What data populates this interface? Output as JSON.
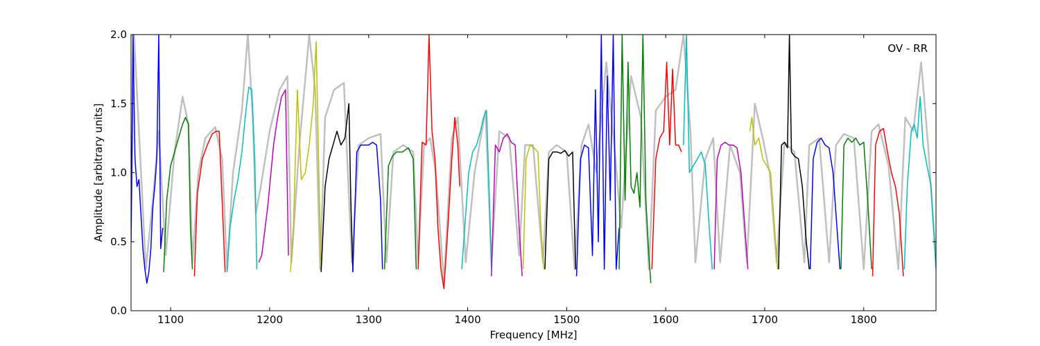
{
  "chart_data": {
    "type": "line",
    "title": "",
    "annotation": "OV - RR",
    "xlabel": "Frequency [MHz]",
    "ylabel": "Amplitude [arbitrary units]",
    "xlim": [
      1060,
      1873
    ],
    "ylim": [
      0.0,
      2.0
    ],
    "xticks": [
      1100,
      1200,
      1300,
      1400,
      1500,
      1600,
      1700,
      1800
    ],
    "yticks": [
      0.0,
      0.5,
      1.0,
      1.5,
      2.0
    ],
    "xtick_labels": [
      "1100",
      "1200",
      "1300",
      "1400",
      "1500",
      "1600",
      "1700",
      "1800"
    ],
    "ytick_labels": [
      "0.0",
      "0.5",
      "1.0",
      "1.5",
      "2.0"
    ],
    "grid": false,
    "background_trace": {
      "color": "#c0c0c0",
      "x": [
        1060,
        1063,
        1068,
        1075,
        1082,
        1088,
        1095,
        1104,
        1112,
        1118,
        1122,
        1128,
        1135,
        1145,
        1152,
        1157,
        1163,
        1172,
        1178,
        1183,
        1186,
        1191,
        1200,
        1210,
        1218,
        1222,
        1230,
        1240,
        1246,
        1251,
        1256,
        1265,
        1275,
        1283,
        1290,
        1300,
        1312,
        1318,
        1325,
        1335,
        1345,
        1350,
        1356,
        1362,
        1368,
        1376,
        1384,
        1390,
        1398,
        1407,
        1418,
        1424,
        1432,
        1442,
        1452,
        1458,
        1466,
        1476,
        1482,
        1490,
        1500,
        1508,
        1515,
        1522,
        1530,
        1540,
        1548,
        1555,
        1565,
        1575,
        1583,
        1590,
        1600,
        1610,
        1618,
        1625,
        1630,
        1640,
        1648,
        1655,
        1665,
        1675,
        1682,
        1690,
        1698,
        1705,
        1712,
        1720,
        1730,
        1740,
        1745,
        1755,
        1765,
        1772,
        1780,
        1790,
        1800,
        1808,
        1815,
        1825,
        1835,
        1842,
        1850,
        1858,
        1865,
        1873
      ],
      "y": [
        0.6,
        2.0,
        1.3,
        0.3,
        0.8,
        1.3,
        0.4,
        1.15,
        1.55,
        1.35,
        0.35,
        1.0,
        1.25,
        1.33,
        1.1,
        0.3,
        1.0,
        1.45,
        2.0,
        1.4,
        0.7,
        0.9,
        1.3,
        1.6,
        1.7,
        0.35,
        1.2,
        2.0,
        1.6,
        0.3,
        1.4,
        1.6,
        1.65,
        0.35,
        1.2,
        1.25,
        1.28,
        0.35,
        1.15,
        1.2,
        1.15,
        0.35,
        1.2,
        1.25,
        1.0,
        0.2,
        1.25,
        1.4,
        0.35,
        1.0,
        1.45,
        0.35,
        1.3,
        1.25,
        0.4,
        1.2,
        1.2,
        0.35,
        1.15,
        1.2,
        1.15,
        0.3,
        1.2,
        1.35,
        1.0,
        1.8,
        1.2,
        0.6,
        1.7,
        1.4,
        0.3,
        1.45,
        1.55,
        1.6,
        2.0,
        1.3,
        0.35,
        1.1,
        1.25,
        0.35,
        1.2,
        1.0,
        0.35,
        1.5,
        1.25,
        1.0,
        0.35,
        1.22,
        1.15,
        0.35,
        1.2,
        1.25,
        0.35,
        1.2,
        1.28,
        1.25,
        0.3,
        1.3,
        1.35,
        1.05,
        0.3,
        1.4,
        1.3,
        1.8,
        1.2,
        0.35
      ]
    },
    "series": [
      {
        "color": "#0000ff",
        "x": [
          1060,
          1062,
          1064,
          1066,
          1068,
          1070,
          1072,
          1074,
          1076,
          1078,
          1080,
          1082,
          1084,
          1086,
          1088,
          1090,
          1092
        ],
        "y": [
          0.5,
          2.0,
          1.1,
          0.9,
          0.95,
          0.7,
          0.45,
          0.3,
          0.2,
          0.28,
          0.45,
          0.75,
          0.9,
          1.1,
          2.0,
          0.45,
          0.6
        ]
      },
      {
        "color": "#008000",
        "x": [
          1093,
          1096,
          1100,
          1104,
          1108,
          1112,
          1115,
          1118,
          1120,
          1122
        ],
        "y": [
          0.28,
          0.8,
          1.05,
          1.15,
          1.25,
          1.35,
          1.4,
          1.35,
          0.6,
          0.3
        ]
      },
      {
        "color": "#ff0000",
        "x": [
          1124,
          1127,
          1132,
          1137,
          1142,
          1146,
          1149,
          1152,
          1155
        ],
        "y": [
          0.25,
          0.85,
          1.1,
          1.2,
          1.28,
          1.3,
          1.3,
          0.8,
          0.28
        ]
      },
      {
        "color": "#00bfbf",
        "x": [
          1157,
          1160,
          1164,
          1168,
          1172,
          1176,
          1179,
          1182,
          1185,
          1187
        ],
        "y": [
          0.28,
          0.6,
          0.8,
          0.95,
          1.15,
          1.45,
          1.62,
          1.6,
          1.1,
          0.3
        ]
      },
      {
        "color": "#bf00bf",
        "x": [
          1189,
          1192,
          1198,
          1204,
          1208,
          1212,
          1216,
          1219
        ],
        "y": [
          0.35,
          0.4,
          0.75,
          1.2,
          1.4,
          1.55,
          1.6,
          0.4
        ]
      },
      {
        "color": "#bfbf00",
        "x": [
          1221,
          1224,
          1228,
          1232,
          1236,
          1240,
          1244,
          1247,
          1250,
          1252
        ],
        "y": [
          0.28,
          0.6,
          1.6,
          0.95,
          1.0,
          1.2,
          1.5,
          1.95,
          0.9,
          0.28
        ]
      },
      {
        "color": "#000000",
        "x": [
          1252,
          1256,
          1260,
          1264,
          1268,
          1272,
          1276,
          1280,
          1282,
          1284
        ],
        "y": [
          0.28,
          0.9,
          1.1,
          1.2,
          1.3,
          1.2,
          1.25,
          1.5,
          0.8,
          0.28
        ]
      },
      {
        "color": "#0000ff",
        "x": [
          1284,
          1288,
          1292,
          1296,
          1300,
          1304,
          1308,
          1312,
          1314
        ],
        "y": [
          0.28,
          1.15,
          1.2,
          1.2,
          1.2,
          1.22,
          1.2,
          0.8,
          0.3
        ]
      },
      {
        "color": "#008000",
        "x": [
          1316,
          1320,
          1324,
          1328,
          1334,
          1340,
          1345,
          1348
        ],
        "y": [
          0.3,
          1.05,
          1.12,
          1.15,
          1.15,
          1.18,
          1.1,
          0.3
        ]
      },
      {
        "color": "#ff0000",
        "x": [
          1350,
          1354,
          1358,
          1361,
          1364,
          1367,
          1370,
          1373,
          1376,
          1380,
          1384,
          1387,
          1390,
          1392
        ],
        "y": [
          0.3,
          1.22,
          1.2,
          2.0,
          1.3,
          1.1,
          0.6,
          0.3,
          0.16,
          0.6,
          1.1,
          1.4,
          1.2,
          0.9
        ]
      },
      {
        "color": "#00bfbf",
        "x": [
          1394,
          1397,
          1401,
          1405,
          1409,
          1413,
          1416,
          1419,
          1422,
          1424
        ],
        "y": [
          0.3,
          0.6,
          1.0,
          1.15,
          1.2,
          1.3,
          1.4,
          1.45,
          0.8,
          0.3
        ]
      },
      {
        "color": "#bf00bf",
        "x": [
          1424,
          1428,
          1432,
          1436,
          1440,
          1444,
          1448,
          1452,
          1455
        ],
        "y": [
          0.25,
          1.2,
          1.15,
          1.25,
          1.28,
          1.22,
          1.2,
          0.6,
          0.25
        ]
      },
      {
        "color": "#bfbf00",
        "x": [
          1456,
          1459,
          1463,
          1467,
          1471,
          1474,
          1477
        ],
        "y": [
          0.3,
          1.1,
          1.2,
          1.18,
          1.15,
          0.6,
          0.3
        ]
      },
      {
        "color": "#000000",
        "x": [
          1478,
          1482,
          1486,
          1490,
          1494,
          1498,
          1502,
          1506,
          1509
        ],
        "y": [
          0.3,
          1.1,
          1.15,
          1.15,
          1.14,
          1.16,
          1.12,
          1.15,
          0.3
        ]
      },
      {
        "color": "#0000ff",
        "x": [
          1510,
          1514,
          1518,
          1522,
          1526,
          1529,
          1532,
          1535,
          1538,
          1541,
          1544,
          1547,
          1550,
          1553
        ],
        "y": [
          0.25,
          1.1,
          1.2,
          1.18,
          0.4,
          1.6,
          0.5,
          2.0,
          0.3,
          1.7,
          0.8,
          2.0,
          0.3,
          0.6
        ]
      },
      {
        "color": "#008000",
        "x": [
          1553,
          1556,
          1559,
          1562,
          1565,
          1568,
          1571,
          1574,
          1577,
          1580,
          1583,
          1585
        ],
        "y": [
          0.3,
          2.0,
          0.8,
          1.8,
          0.9,
          0.85,
          1.0,
          0.75,
          2.0,
          0.8,
          0.4,
          0.2
        ]
      },
      {
        "color": "#ff0000",
        "x": [
          1586,
          1590,
          1594,
          1598,
          1601,
          1604,
          1607,
          1610,
          1613,
          1616
        ],
        "y": [
          0.3,
          1.1,
          1.25,
          1.3,
          1.8,
          1.2,
          1.75,
          1.2,
          1.2,
          1.15
        ]
      },
      {
        "color": "#00bfbf",
        "x": [
          1618,
          1621,
          1624,
          1628,
          1632,
          1636,
          1640,
          1644,
          1647
        ],
        "y": [
          1.2,
          2.0,
          1.0,
          1.05,
          1.1,
          1.15,
          1.05,
          0.6,
          0.3
        ]
      },
      {
        "color": "#bf00bf",
        "x": [
          1649,
          1652,
          1656,
          1660,
          1664,
          1668,
          1672,
          1676,
          1680,
          1683
        ],
        "y": [
          0.3,
          1.1,
          1.2,
          1.22,
          1.2,
          1.2,
          1.18,
          1.0,
          0.6,
          0.3
        ]
      },
      {
        "color": "#bfbf00",
        "x": [
          1685,
          1687,
          1690,
          1694,
          1698,
          1702,
          1706,
          1710,
          1713
        ],
        "y": [
          1.3,
          1.4,
          1.2,
          1.25,
          1.1,
          1.05,
          1.0,
          0.6,
          0.3
        ]
      },
      {
        "color": "#000000",
        "x": [
          1714,
          1717,
          1720,
          1723,
          1725,
          1727,
          1730,
          1734,
          1738,
          1742,
          1745
        ],
        "y": [
          0.3,
          1.2,
          1.22,
          1.18,
          2.0,
          1.15,
          1.12,
          1.1,
          0.9,
          0.5,
          0.3
        ]
      },
      {
        "color": "#0000ff",
        "x": [
          1746,
          1749,
          1753,
          1757,
          1761,
          1765,
          1769,
          1773,
          1776
        ],
        "y": [
          0.3,
          1.1,
          1.22,
          1.25,
          1.2,
          1.18,
          1.0,
          0.6,
          0.3
        ]
      },
      {
        "color": "#008000",
        "x": [
          1777,
          1780,
          1784,
          1788,
          1792,
          1796,
          1800,
          1804,
          1808
        ],
        "y": [
          0.3,
          1.2,
          1.25,
          1.22,
          1.25,
          1.2,
          1.22,
          0.8,
          0.3
        ]
      },
      {
        "color": "#ff0000",
        "x": [
          1809,
          1812,
          1816,
          1820,
          1824,
          1828,
          1832,
          1836,
          1840
        ],
        "y": [
          0.25,
          1.2,
          1.3,
          1.32,
          1.15,
          1.0,
          0.9,
          0.7,
          0.25
        ]
      },
      {
        "color": "#00bfbf",
        "x": [
          1841,
          1844,
          1848,
          1851,
          1854,
          1857,
          1860,
          1864,
          1868,
          1873
        ],
        "y": [
          0.3,
          0.9,
          1.3,
          1.35,
          1.25,
          1.55,
          1.2,
          1.05,
          0.9,
          0.3
        ]
      }
    ]
  }
}
